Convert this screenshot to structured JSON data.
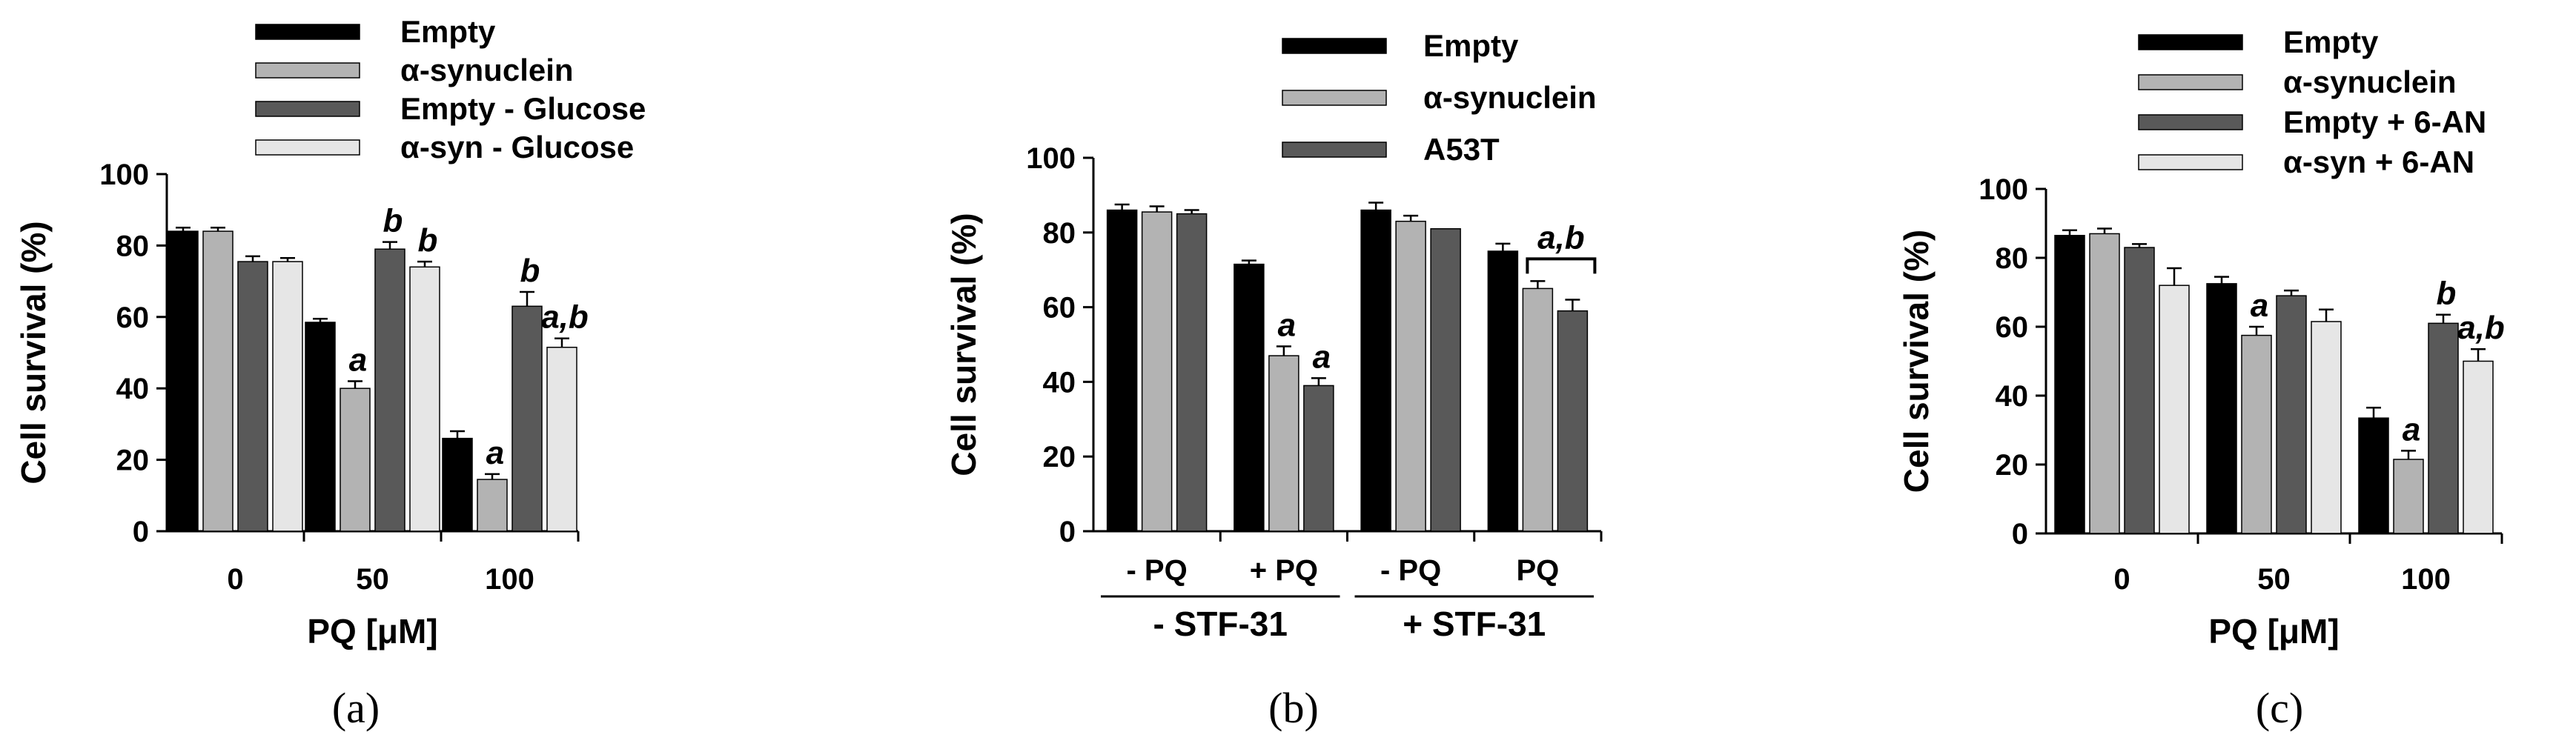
{
  "chart_data": [
    {
      "type": "bar",
      "panel_label": "(a)",
      "ylabel": "Cell survival (%)",
      "xlabel": "PQ [μM]",
      "ylim": [
        0,
        100
      ],
      "yticks": [
        0,
        20,
        40,
        60,
        80,
        100
      ],
      "categories": [
        "0",
        "50",
        "100"
      ],
      "legend": [
        "Empty",
        "α-synuclein",
        "Empty - Glucose",
        "α-syn - Glucose"
      ],
      "series": [
        {
          "name": "Empty",
          "color": "#000000",
          "values": [
            84,
            58.5,
            26
          ],
          "errors": [
            1,
            1,
            2
          ]
        },
        {
          "name": "α-synuclein",
          "color": "#b3b3b3",
          "values": [
            84,
            40,
            14.5
          ],
          "errors": [
            1,
            2,
            1.5
          ]
        },
        {
          "name": "Empty - Glucose",
          "color": "#595959",
          "values": [
            75.5,
            79,
            63
          ],
          "errors": [
            1.5,
            2,
            4
          ]
        },
        {
          "name": "α-syn - Glucose",
          "color": "#e6e6e6",
          "values": [
            75.5,
            74,
            51.5
          ],
          "errors": [
            1,
            1.5,
            2.5
          ]
        }
      ],
      "annotations": [
        {
          "text": "a",
          "category": 1,
          "series": 1
        },
        {
          "text": "b",
          "category": 1,
          "series": 2
        },
        {
          "text": "b",
          "category": 1,
          "series": 3
        },
        {
          "text": "a",
          "category": 2,
          "series": 1
        },
        {
          "text": "b",
          "category": 2,
          "series": 2
        },
        {
          "text": "a,b",
          "category": 2,
          "series": 3
        }
      ]
    },
    {
      "type": "bar",
      "panel_label": "(b)",
      "ylabel": "Cell survival (%)",
      "xlabel": "",
      "ylim": [
        0,
        100
      ],
      "yticks": [
        0,
        20,
        40,
        60,
        80,
        100
      ],
      "categories": [
        "- PQ",
        "+ PQ",
        "- PQ",
        "PQ"
      ],
      "groups": [
        {
          "label": "- STF-31",
          "from": 0,
          "to": 1
        },
        {
          "label": "+ STF-31",
          "from": 2,
          "to": 3
        }
      ],
      "legend": [
        "Empty",
        "α-synuclein",
        "A53T"
      ],
      "series": [
        {
          "name": "Empty",
          "color": "#000000",
          "values": [
            86,
            71.5,
            86,
            75
          ],
          "errors": [
            1.5,
            1,
            2,
            2
          ]
        },
        {
          "name": "α-synuclein",
          "color": "#b3b3b3",
          "values": [
            85.5,
            47,
            83,
            65
          ],
          "errors": [
            1.5,
            2.5,
            1.5,
            2
          ]
        },
        {
          "name": "A53T",
          "color": "#595959",
          "values": [
            85,
            39,
            81,
            59
          ],
          "errors": [
            1,
            2,
            0,
            3
          ]
        }
      ],
      "annotations": [
        {
          "text": "a",
          "category": 1,
          "series": 1
        },
        {
          "text": "a",
          "category": 1,
          "series": 2
        },
        {
          "text": "a,b",
          "category": 3,
          "series": 1,
          "bracket": true
        }
      ]
    },
    {
      "type": "bar",
      "panel_label": "(c)",
      "ylabel": "Cell survival (%)",
      "xlabel": "PQ [μM]",
      "ylim": [
        0,
        100
      ],
      "yticks": [
        0,
        20,
        40,
        60,
        80,
        100
      ],
      "categories": [
        "0",
        "50",
        "100"
      ],
      "legend": [
        "Empty",
        "α-synuclein",
        "Empty + 6-AN",
        "α-syn + 6-AN"
      ],
      "series": [
        {
          "name": "Empty",
          "color": "#000000",
          "values": [
            86.5,
            72.5,
            33.5
          ],
          "errors": [
            1.5,
            2,
            3
          ]
        },
        {
          "name": "α-synuclein",
          "color": "#b3b3b3",
          "values": [
            87,
            57.5,
            21.5
          ],
          "errors": [
            1.5,
            2.5,
            2.5
          ]
        },
        {
          "name": "Empty + 6-AN",
          "color": "#595959",
          "values": [
            83,
            69,
            61
          ],
          "errors": [
            1,
            1.5,
            2.5
          ]
        },
        {
          "name": "α-syn + 6-AN",
          "color": "#e6e6e6",
          "values": [
            72,
            61.5,
            50
          ],
          "errors": [
            5,
            3.5,
            3.5
          ]
        }
      ],
      "annotations": [
        {
          "text": "a",
          "category": 1,
          "series": 1
        },
        {
          "text": "a",
          "category": 2,
          "series": 1
        },
        {
          "text": "b",
          "category": 2,
          "series": 2
        },
        {
          "text": "a,b",
          "category": 2,
          "series": 3
        }
      ]
    }
  ]
}
